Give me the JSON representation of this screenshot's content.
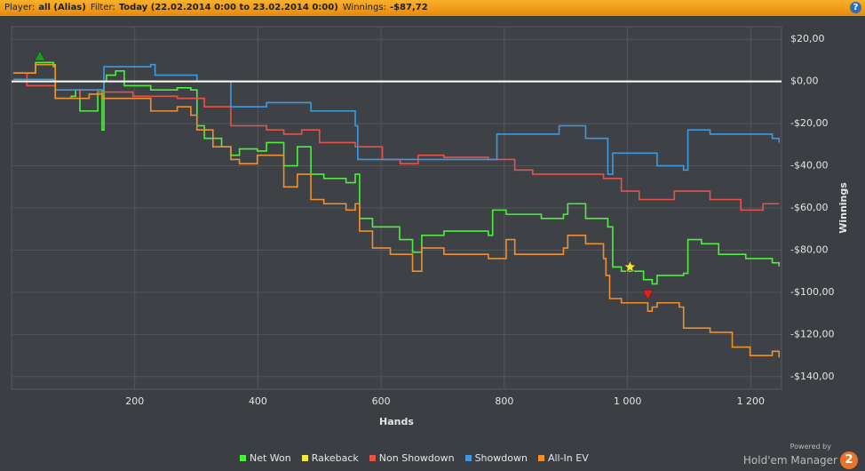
{
  "header": {
    "items": [
      {
        "label": "Player:",
        "value": "all (Alias)"
      },
      {
        "label": "Filter:",
        "value": "Today (22.02.2014 0:00 to 23.02.2014 0:00)"
      },
      {
        "label": "Winnings:",
        "value": "-$87,72"
      }
    ],
    "help": "?"
  },
  "logo": {
    "powered": "Powered by",
    "name": "Hold'em Manager",
    "version": "2"
  },
  "chart_data": {
    "type": "line",
    "step": true,
    "xlabel": "Hands",
    "ylabel": "Winnings",
    "xlim": [
      0,
      1250
    ],
    "ylim": [
      -146,
      26
    ],
    "xticks": [
      200,
      400,
      600,
      800,
      {
        "value": 1000,
        "label": "1 000"
      },
      {
        "value": 1200,
        "label": "1 200"
      }
    ],
    "yticks": [
      {
        "value": 20,
        "label": "$20,00"
      },
      {
        "value": 0,
        "label": "$0,00"
      },
      {
        "value": -20,
        "label": "-$20,00"
      },
      {
        "value": -40,
        "label": "-$40,00"
      },
      {
        "value": -60,
        "label": "-$60,00"
      },
      {
        "value": -80,
        "label": "-$80,00"
      },
      {
        "value": -100,
        "label": "-$100,00"
      },
      {
        "value": -120,
        "label": "-$120,00"
      },
      {
        "value": -140,
        "label": "-$140,00"
      }
    ],
    "grid": true,
    "series": [
      {
        "name": "Net Won",
        "color": "#4cf03c",
        "x": [
          3,
          39,
          68,
          71,
          97,
          104,
          111,
          140,
          147,
          150,
          154,
          169,
          183,
          197,
          226,
          269,
          291,
          301,
          313,
          341,
          356,
          370,
          399,
          414,
          442,
          464,
          486,
          507,
          543,
          558,
          565,
          586,
          630,
          651,
          666,
          702,
          774,
          781,
          803,
          860,
          896,
          903,
          932,
          968,
          976,
          990,
          1026,
          1040,
          1048,
          1091,
          1098,
          1120,
          1148,
          1192,
          1235,
          1246
        ],
        "values": [
          4,
          9,
          8,
          -8,
          -7,
          -4,
          -14,
          -4,
          -23,
          0,
          3,
          5,
          -2,
          -2,
          -4,
          -3,
          -4,
          -21,
          -27,
          -31,
          -35,
          -32,
          -33,
          -29,
          -40,
          -31,
          -44,
          -46,
          -48,
          -44,
          -65,
          -69,
          -75,
          -81,
          -73,
          -71,
          -73,
          -61,
          -63,
          -65,
          -63,
          -58,
          -65,
          -69,
          -88,
          -90,
          -94,
          -96,
          -92,
          -91,
          -75,
          -77,
          -82,
          -84,
          -86,
          -87.72
        ]
      },
      {
        "name": "Rakeback",
        "color": "#f0e83c",
        "x": [
          0,
          1250
        ],
        "values": [
          0,
          0
        ]
      },
      {
        "name": "Non Showdown",
        "color": "#e8524a",
        "x": [
          3,
          25,
          68,
          71,
          111,
          140,
          197,
          269,
          313,
          356,
          414,
          442,
          471,
          500,
          558,
          602,
          631,
          660,
          702,
          774,
          817,
          846,
          932,
          961,
          990,
          1019,
          1076,
          1134,
          1184,
          1220,
          1246
        ],
        "values": [
          4,
          -2,
          -2,
          -8,
          -4,
          -5,
          -7,
          -8,
          -12,
          -21,
          -23,
          -25,
          -23,
          -29,
          -31,
          -37,
          -39,
          -35,
          -36,
          -37,
          -42,
          -44,
          -44,
          -46,
          -52,
          -56,
          -52,
          -56,
          -61,
          -58,
          -58
        ]
      },
      {
        "name": "Showdown",
        "color": "#3c9be0",
        "x": [
          3,
          68,
          71,
          147,
          150,
          226,
          233,
          298,
          301,
          356,
          414,
          486,
          558,
          562,
          702,
          781,
          788,
          889,
          932,
          968,
          976,
          1048,
          1091,
          1098,
          1134,
          1235,
          1246
        ],
        "values": [
          1,
          0,
          -4,
          -4,
          7,
          8,
          3,
          3,
          0,
          -12,
          -10,
          -14,
          -21,
          -37,
          -37,
          -37,
          -25,
          -21,
          -27,
          -44,
          -34,
          -40,
          -42,
          -23,
          -25,
          -27,
          -29
        ]
      },
      {
        "name": "All-In EV",
        "color": "#f0902c",
        "x": [
          3,
          39,
          68,
          71,
          126,
          147,
          197,
          226,
          269,
          291,
          301,
          327,
          356,
          370,
          399,
          442,
          464,
          486,
          507,
          543,
          558,
          565,
          586,
          615,
          651,
          666,
          702,
          774,
          803,
          817,
          896,
          903,
          932,
          961,
          965,
          971,
          990,
          1033,
          1040,
          1048,
          1084,
          1091,
          1134,
          1170,
          1199,
          1235,
          1246
        ],
        "values": [
          4,
          8,
          7,
          -8,
          -6,
          -8,
          -8,
          -14,
          -12,
          -16,
          -23,
          -31,
          -37,
          -39,
          -35,
          -50,
          -44,
          -56,
          -58,
          -61,
          -58,
          -71,
          -79,
          -82,
          -90,
          -79,
          -82,
          -84,
          -75,
          -82,
          -79,
          -73,
          -77,
          -84,
          -92,
          -103,
          -105,
          -109,
          -107,
          -105,
          -107,
          -117,
          -119,
          -126,
          -130,
          -128,
          -131
        ]
      }
    ],
    "markers": [
      {
        "x": 46,
        "y": 12,
        "shape": "triangle-up",
        "color": "#1a9a1a"
      },
      {
        "x": 1004,
        "y": -88,
        "shape": "star",
        "color": "#f5e23a"
      },
      {
        "x": 1033,
        "y": -101,
        "shape": "triangle-down",
        "color": "#e02020"
      }
    ]
  }
}
